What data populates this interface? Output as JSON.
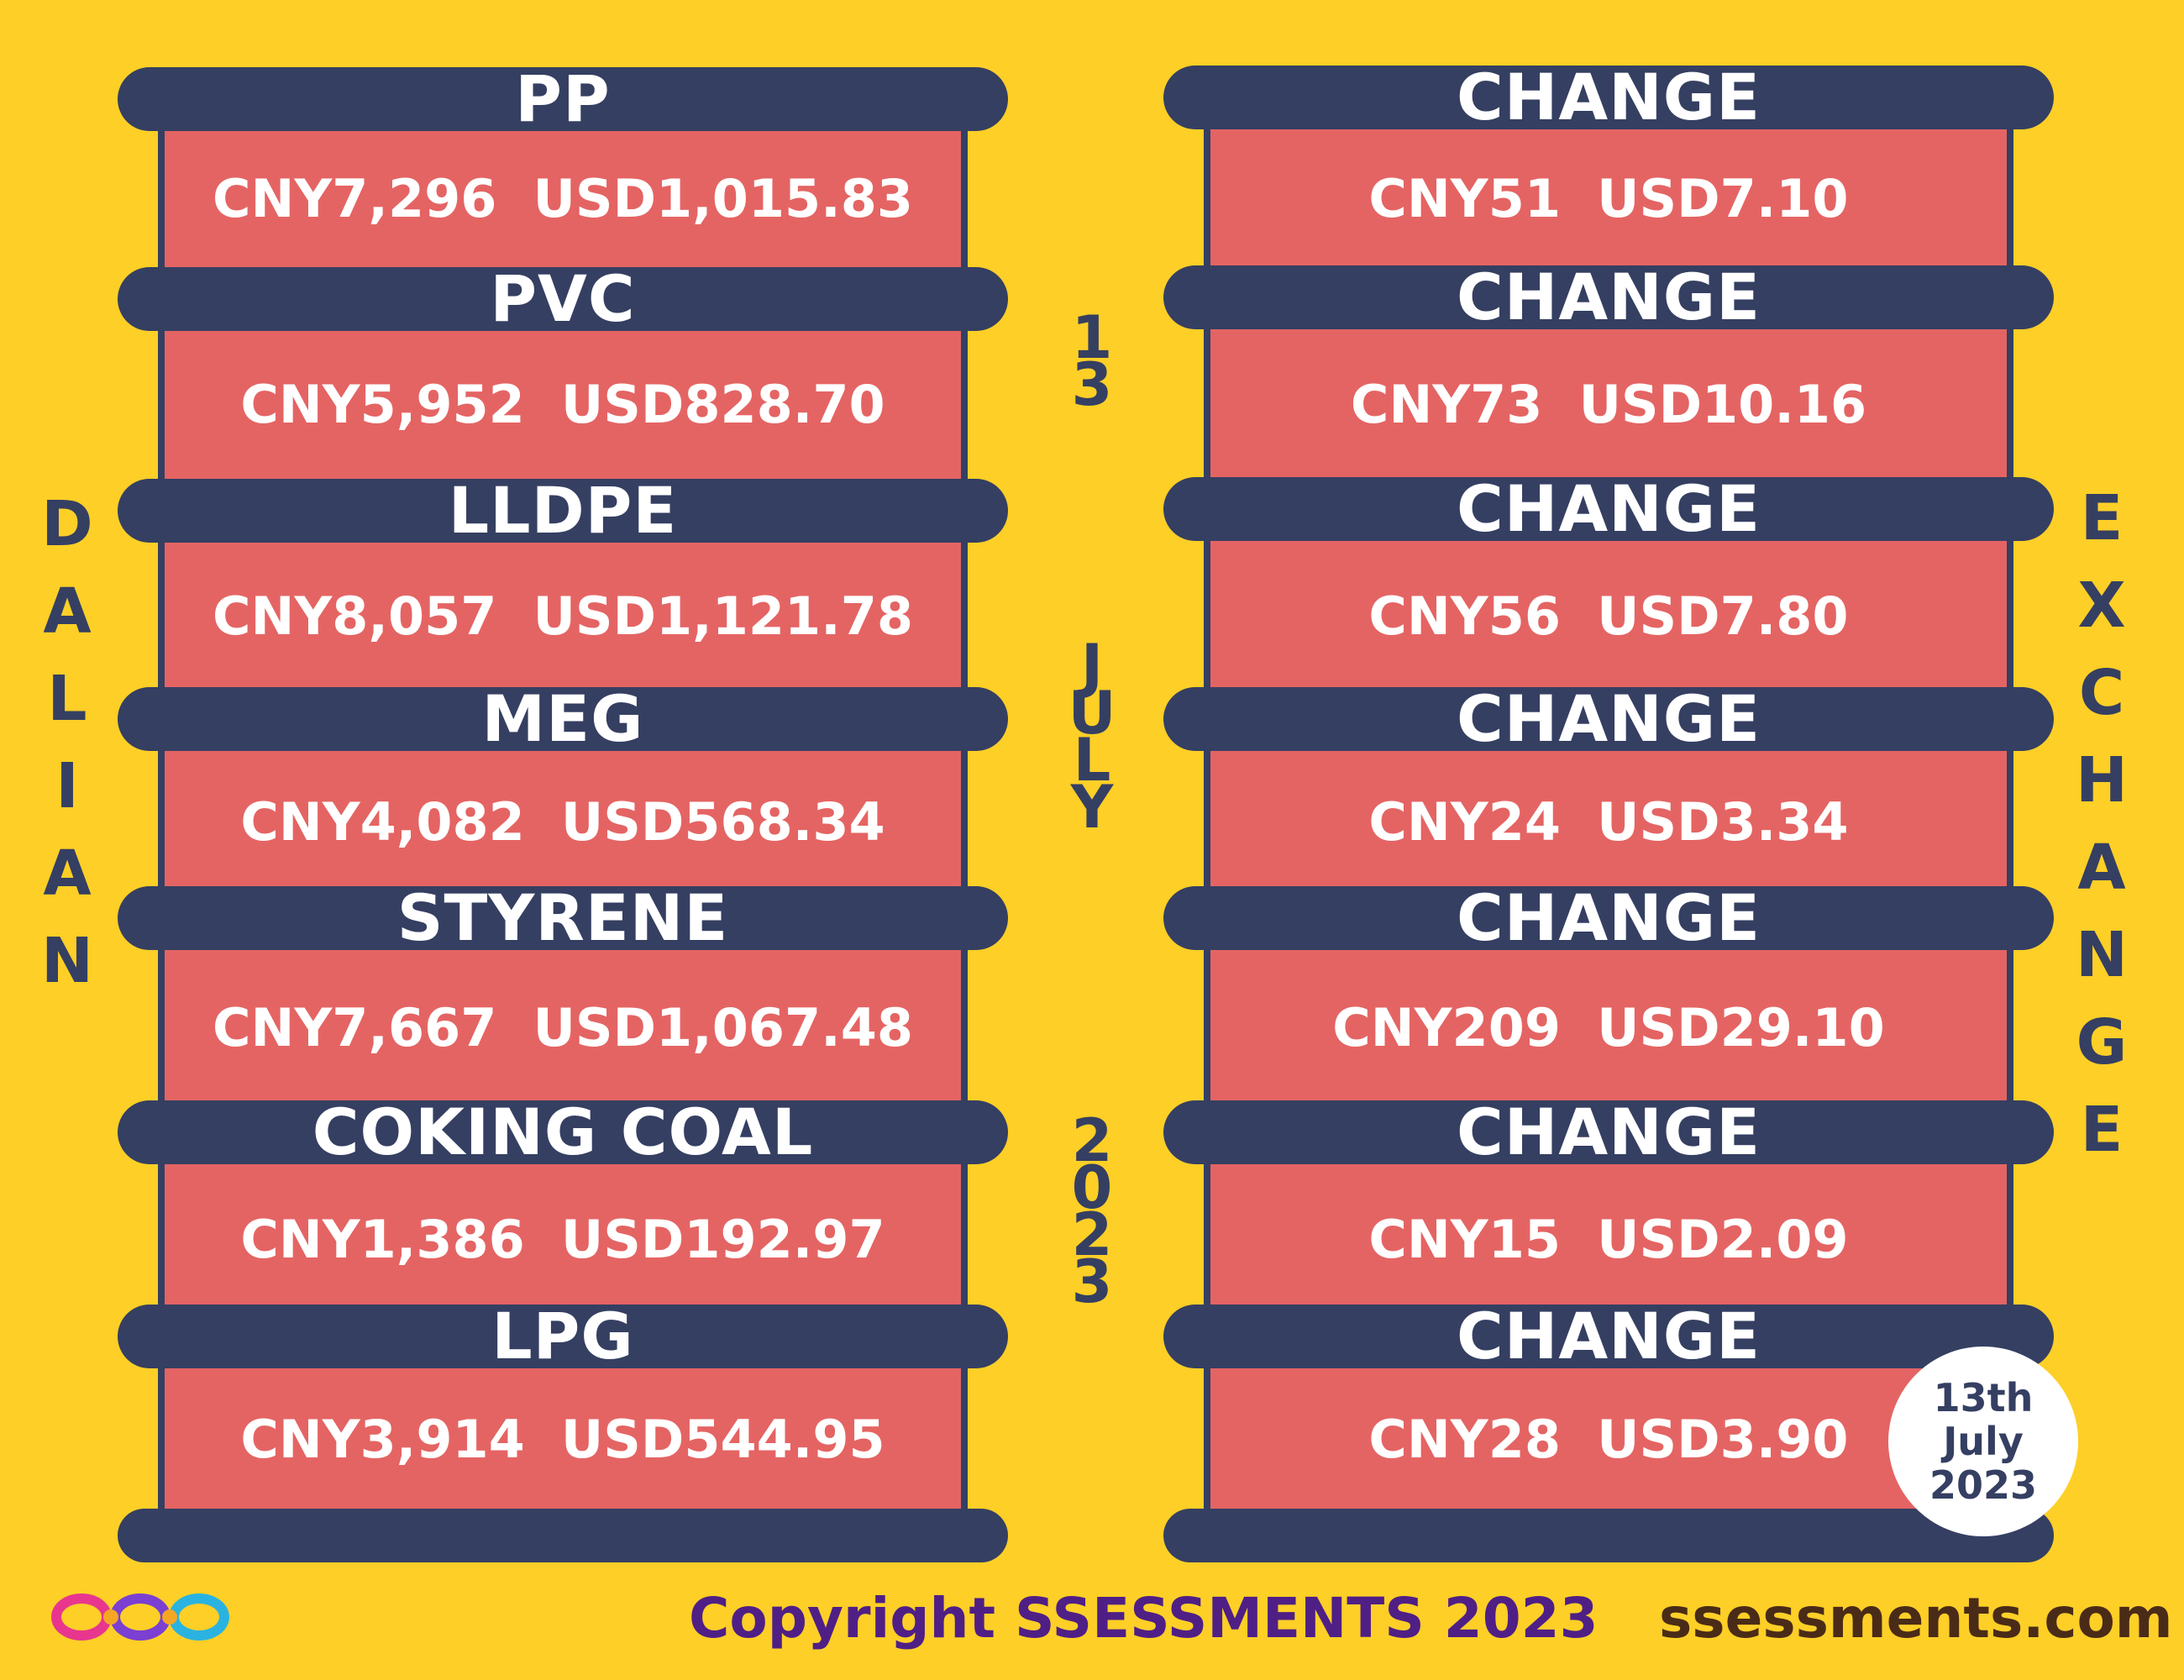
{
  "products": [
    {
      "name": "PP",
      "price": "CNY7,296  USD1,015.83",
      "change_label": "CHANGE",
      "change": "CNY51  USD7.10"
    },
    {
      "name": "PVC",
      "price": "CNY5,952  USD828.70",
      "change_label": "CHANGE",
      "change": "CNY73  USD10.16"
    },
    {
      "name": "LLDPE",
      "price": "CNY8,057  USD1,121.78",
      "change_label": "CHANGE",
      "change": "CNY56  USD7.80"
    },
    {
      "name": "MEG",
      "price": "CNY4,082  USD568.34",
      "change_label": "CHANGE",
      "change": "CNY24  USD3.34"
    },
    {
      "name": "STYRENE",
      "price": "CNY7,667  USD1,067.48",
      "change_label": "CHANGE",
      "change": "CNY209  USD29.10"
    },
    {
      "name": "COKING COAL",
      "price": "CNY1,386  USD192.97",
      "change_label": "CHANGE",
      "change": "CNY15  USD2.09"
    },
    {
      "name": "LPG",
      "price": "CNY3,914  USD544.95",
      "change_label": "CHANGE",
      "change": "CNY28  USD3.90"
    }
  ],
  "side_left": [
    "D",
    "A",
    "L",
    "I",
    "A",
    "N"
  ],
  "side_right": [
    "E",
    "X",
    "C",
    "H",
    "A",
    "N",
    "G",
    "E"
  ],
  "middle_top": [
    "1",
    "3"
  ],
  "middle_mid": [
    "J",
    "U",
    "L",
    "Y"
  ],
  "middle_bottom": [
    "2",
    "0",
    "2",
    "3"
  ],
  "date_badge": {
    "line1": "13th",
    "line2": "July",
    "line3": "2023"
  },
  "footer": {
    "copyright": "Copyright SSESSMENTS 2023",
    "site": "ssessments.com"
  },
  "colors": {
    "background": "#FDCF27",
    "bar": "#353F62",
    "box": "#E46463",
    "logo": [
      "#E8368F",
      "#7B3FD1",
      "#F5A623",
      "#2AB3E0"
    ]
  },
  "icons": {
    "logo": "infinity-loops-logo"
  }
}
